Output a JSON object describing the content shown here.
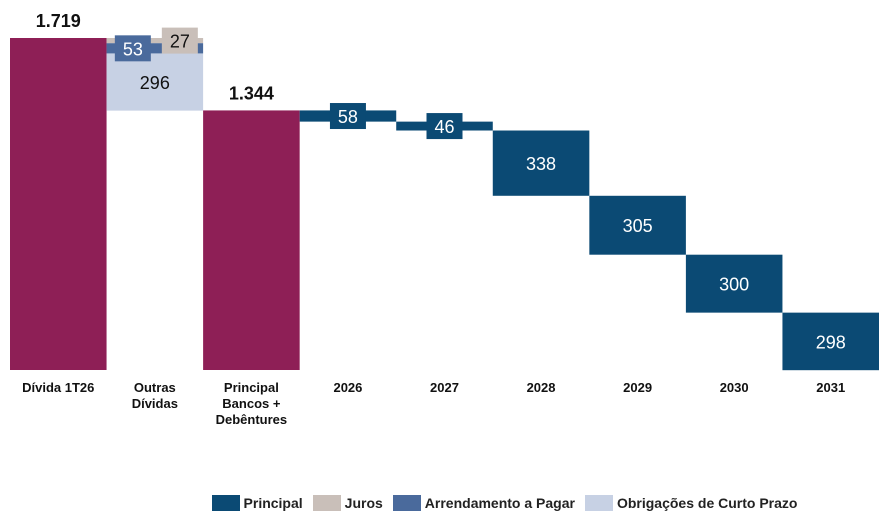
{
  "chart_data": {
    "type": "waterfall",
    "categories": [
      "Dívida 1T26",
      "Outras Dívidas",
      "Principal Bancos + Debêntures",
      "2026",
      "2027",
      "2028",
      "2029",
      "2030",
      "2031"
    ],
    "totals": {
      "color": "#8e1f56",
      "values": [
        1719,
        null,
        1344,
        null,
        null,
        null,
        null,
        null,
        null
      ],
      "value_labels": [
        "1.719",
        null,
        "1.344",
        null,
        null,
        null,
        null,
        null,
        null
      ]
    },
    "series": [
      {
        "name": "Principal",
        "color": "#0b4a74",
        "values": [
          null,
          null,
          null,
          58,
          46,
          338,
          305,
          300,
          298
        ]
      },
      {
        "name": "Juros",
        "color": "#c9bfb9",
        "values": [
          null,
          27,
          null,
          null,
          null,
          null,
          null,
          null,
          null
        ]
      },
      {
        "name": "Arrendamento a Pagar",
        "color": "#4a6a9c",
        "values": [
          null,
          53,
          null,
          null,
          null,
          null,
          null,
          null,
          null
        ]
      },
      {
        "name": "Obrigações de Curto Prazo",
        "color": "#c7d1e4",
        "values": [
          null,
          296,
          null,
          null,
          null,
          null,
          null,
          null,
          null
        ]
      }
    ]
  }
}
